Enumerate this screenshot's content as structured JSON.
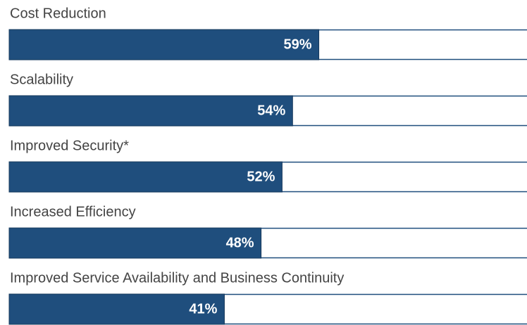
{
  "chart_data": {
    "type": "progress-bar",
    "categories": [
      "Cost Reduction",
      "Scalability",
      "Improved Security*",
      "Increased Efficiency",
      "Improved Service Availability and Business Continuity"
    ],
    "values": [
      59,
      54,
      52,
      48,
      41
    ],
    "value_labels": [
      "59%",
      "54%",
      "52%",
      "48%",
      "41%"
    ],
    "xlim": [
      0,
      100
    ],
    "color": "#1f4e7d"
  }
}
